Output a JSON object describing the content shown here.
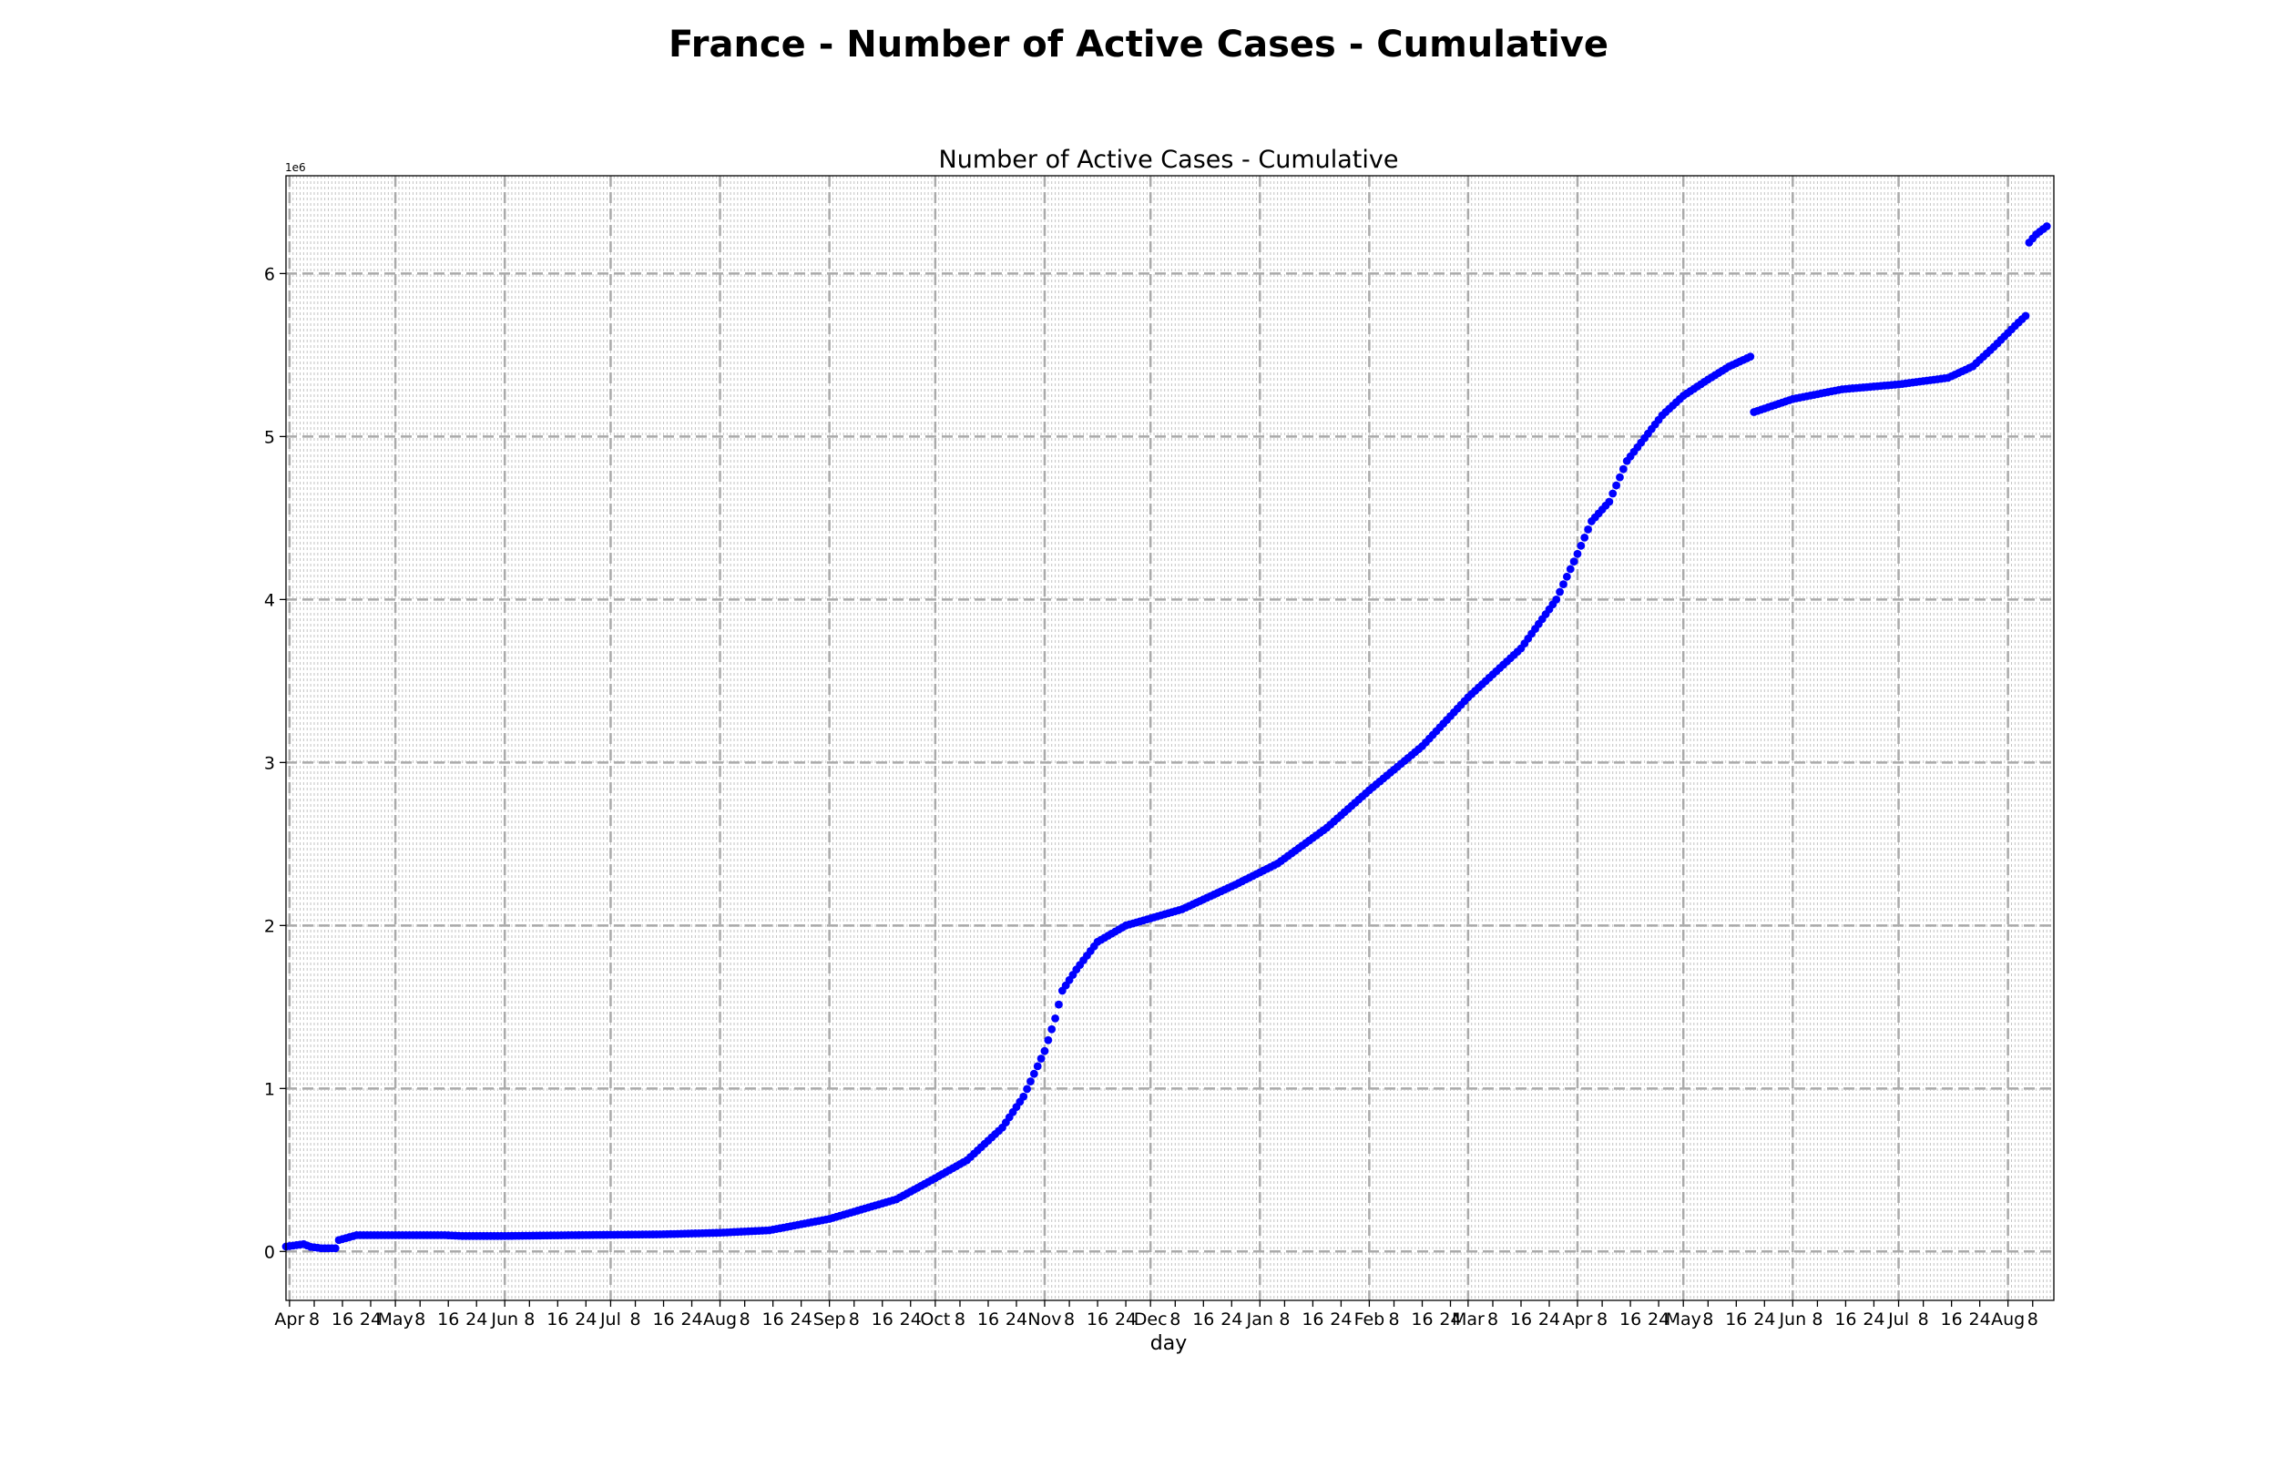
{
  "figure": {
    "suptitle": "France - Number of Active Cases - Cumulative"
  },
  "chart_data": {
    "type": "scatter",
    "title": "Number of Active Cases - Cumulative",
    "xlabel": "day",
    "ylabel": "",
    "y_offset_text": "1e6",
    "grid": true,
    "series_color": "#0000ff",
    "xlim": [
      "2020-03-31",
      "2021-08-14"
    ],
    "ylim": [
      -300000,
      6600000
    ],
    "x_tick_labels": [
      {
        "date": "2020-04-01",
        "label": "Apr"
      },
      {
        "date": "2020-04-08",
        "label": "8"
      },
      {
        "date": "2020-04-16",
        "label": "16"
      },
      {
        "date": "2020-04-24",
        "label": "24"
      },
      {
        "date": "2020-05-01",
        "label": "May"
      },
      {
        "date": "2020-05-08",
        "label": "8"
      },
      {
        "date": "2020-05-16",
        "label": "16"
      },
      {
        "date": "2020-05-24",
        "label": "24"
      },
      {
        "date": "2020-06-01",
        "label": "Jun"
      },
      {
        "date": "2020-06-08",
        "label": "8"
      },
      {
        "date": "2020-06-16",
        "label": "16"
      },
      {
        "date": "2020-06-24",
        "label": "24"
      },
      {
        "date": "2020-07-01",
        "label": "Jul"
      },
      {
        "date": "2020-07-08",
        "label": "8"
      },
      {
        "date": "2020-07-16",
        "label": "16"
      },
      {
        "date": "2020-07-24",
        "label": "24"
      },
      {
        "date": "2020-08-01",
        "label": "Aug"
      },
      {
        "date": "2020-08-08",
        "label": "8"
      },
      {
        "date": "2020-08-16",
        "label": "16"
      },
      {
        "date": "2020-08-24",
        "label": "24"
      },
      {
        "date": "2020-09-01",
        "label": "Sep"
      },
      {
        "date": "2020-09-08",
        "label": "8"
      },
      {
        "date": "2020-09-16",
        "label": "16"
      },
      {
        "date": "2020-09-24",
        "label": "24"
      },
      {
        "date": "2020-10-01",
        "label": "Oct"
      },
      {
        "date": "2020-10-08",
        "label": "8"
      },
      {
        "date": "2020-10-16",
        "label": "16"
      },
      {
        "date": "2020-10-24",
        "label": "24"
      },
      {
        "date": "2020-11-01",
        "label": "Nov"
      },
      {
        "date": "2020-11-08",
        "label": "8"
      },
      {
        "date": "2020-11-16",
        "label": "16"
      },
      {
        "date": "2020-11-24",
        "label": "24"
      },
      {
        "date": "2020-12-01",
        "label": "Dec"
      },
      {
        "date": "2020-12-08",
        "label": "8"
      },
      {
        "date": "2020-12-16",
        "label": "16"
      },
      {
        "date": "2020-12-24",
        "label": "24"
      },
      {
        "date": "2021-01-01",
        "label": "Jan"
      },
      {
        "date": "2021-01-08",
        "label": "8"
      },
      {
        "date": "2021-01-16",
        "label": "16"
      },
      {
        "date": "2021-01-24",
        "label": "24"
      },
      {
        "date": "2021-02-01",
        "label": "Feb"
      },
      {
        "date": "2021-02-08",
        "label": "8"
      },
      {
        "date": "2021-02-16",
        "label": "16"
      },
      {
        "date": "2021-02-24",
        "label": "24"
      },
      {
        "date": "2021-03-01",
        "label": "Mar"
      },
      {
        "date": "2021-03-08",
        "label": "8"
      },
      {
        "date": "2021-03-16",
        "label": "16"
      },
      {
        "date": "2021-03-24",
        "label": "24"
      },
      {
        "date": "2021-04-01",
        "label": "Apr"
      },
      {
        "date": "2021-04-08",
        "label": "8"
      },
      {
        "date": "2021-04-16",
        "label": "16"
      },
      {
        "date": "2021-04-24",
        "label": "24"
      },
      {
        "date": "2021-05-01",
        "label": "May"
      },
      {
        "date": "2021-05-08",
        "label": "8"
      },
      {
        "date": "2021-05-16",
        "label": "16"
      },
      {
        "date": "2021-05-24",
        "label": "24"
      },
      {
        "date": "2021-06-01",
        "label": "Jun"
      },
      {
        "date": "2021-06-08",
        "label": "8"
      },
      {
        "date": "2021-06-16",
        "label": "16"
      },
      {
        "date": "2021-06-24",
        "label": "24"
      },
      {
        "date": "2021-07-01",
        "label": "Jul"
      },
      {
        "date": "2021-07-08",
        "label": "8"
      },
      {
        "date": "2021-07-16",
        "label": "16"
      },
      {
        "date": "2021-07-24",
        "label": "24"
      },
      {
        "date": "2021-08-01",
        "label": "Aug"
      },
      {
        "date": "2021-08-08",
        "label": "8"
      }
    ],
    "y_ticks": [
      {
        "value": 0,
        "label": "0"
      },
      {
        "value": 1000000,
        "label": "1"
      },
      {
        "value": 2000000,
        "label": "2"
      },
      {
        "value": 3000000,
        "label": "3"
      },
      {
        "value": 4000000,
        "label": "4"
      },
      {
        "value": 5000000,
        "label": "5"
      },
      {
        "value": 6000000,
        "label": "6"
      }
    ],
    "points": [
      [
        "2020-03-31",
        30000
      ],
      [
        "2020-04-05",
        45000
      ],
      [
        "2020-04-07",
        28000
      ],
      [
        "2020-04-10",
        20000
      ],
      [
        "2020-04-14",
        20000
      ],
      [
        "2020-04-15",
        70000
      ],
      [
        "2020-04-20",
        100000
      ],
      [
        "2020-05-01",
        100000
      ],
      [
        "2020-05-15",
        100000
      ],
      [
        "2020-05-20",
        95000
      ],
      [
        "2020-06-01",
        95000
      ],
      [
        "2020-06-20",
        100000
      ],
      [
        "2020-07-15",
        105000
      ],
      [
        "2020-08-01",
        115000
      ],
      [
        "2020-08-15",
        130000
      ],
      [
        "2020-09-01",
        200000
      ],
      [
        "2020-09-20",
        320000
      ],
      [
        "2020-10-01",
        450000
      ],
      [
        "2020-10-10",
        560000
      ],
      [
        "2020-10-20",
        760000
      ],
      [
        "2020-10-26",
        950000
      ],
      [
        "2020-11-01",
        1230000
      ],
      [
        "2020-11-04",
        1430000
      ],
      [
        "2020-11-06",
        1600000
      ],
      [
        "2020-11-10",
        1730000
      ],
      [
        "2020-11-16",
        1900000
      ],
      [
        "2020-11-24",
        2000000
      ],
      [
        "2020-12-10",
        2100000
      ],
      [
        "2020-12-25",
        2250000
      ],
      [
        "2021-01-06",
        2380000
      ],
      [
        "2021-01-20",
        2600000
      ],
      [
        "2021-02-01",
        2830000
      ],
      [
        "2021-02-16",
        3100000
      ],
      [
        "2021-03-01",
        3400000
      ],
      [
        "2021-03-16",
        3700000
      ],
      [
        "2021-03-26",
        4000000
      ],
      [
        "2021-04-01",
        4280000
      ],
      [
        "2021-04-05",
        4480000
      ],
      [
        "2021-04-10",
        4600000
      ],
      [
        "2021-04-15",
        4850000
      ],
      [
        "2021-04-25",
        5130000
      ],
      [
        "2021-05-01",
        5250000
      ],
      [
        "2021-05-08",
        5350000
      ],
      [
        "2021-05-14",
        5430000
      ],
      [
        "2021-05-20",
        5490000
      ],
      [
        "2021-05-21",
        5150000
      ],
      [
        "2021-06-01",
        5230000
      ],
      [
        "2021-06-15",
        5290000
      ],
      [
        "2021-07-01",
        5320000
      ],
      [
        "2021-07-15",
        5360000
      ],
      [
        "2021-07-22",
        5430000
      ],
      [
        "2021-07-28",
        5550000
      ],
      [
        "2021-08-04",
        5700000
      ],
      [
        "2021-08-06",
        5740000
      ],
      [
        "2021-08-07",
        6190000
      ],
      [
        "2021-08-09",
        6240000
      ],
      [
        "2021-08-12",
        6290000
      ]
    ]
  }
}
